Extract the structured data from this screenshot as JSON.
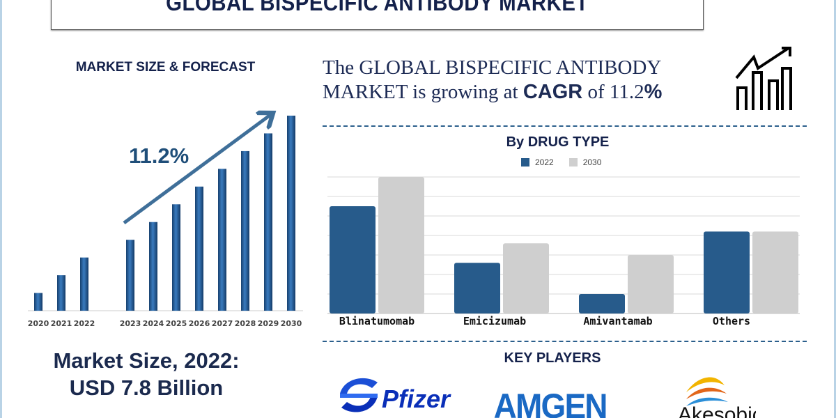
{
  "header": {
    "title": "GLOBAL BISPECIFIC ANTIBODY MARKET"
  },
  "left": {
    "section_title": "MARKET SIZE & FORECAST",
    "market_size_line1": "Market Size, 2022:",
    "market_size_line2": "USD 7.8 Billion"
  },
  "headline": {
    "part1": "The GLOBAL BISPECIFIC ANTIBODY MARKET is growing at ",
    "cagr_word": "CAGR",
    "part2": " of 11.2",
    "percent": "%"
  },
  "icons": {
    "growth": "bar-chart-growth-icon"
  },
  "key_players": {
    "title": "KEY PLAYERS",
    "companies": [
      "Pfizer",
      "AMGEN",
      "Akesobio"
    ]
  },
  "colors": {
    "navy": "#14214b",
    "bar_2022": "#275b8b",
    "bar_2030": "#cfcfcf",
    "forecast_bar": "#2b65a6",
    "arrow": "#3f6f99"
  },
  "chart_data": [
    {
      "type": "bar",
      "title": "",
      "categories": [
        "2020",
        "2021",
        "2022",
        "2023",
        "2024",
        "2025",
        "2026",
        "2027",
        "2028",
        "2029",
        "2030"
      ],
      "values": [
        1,
        2,
        3,
        4,
        5,
        6,
        7,
        8,
        9,
        10,
        11
      ],
      "annotation": "11.2%",
      "grid": false,
      "xlabel": "",
      "ylabel": ""
    },
    {
      "type": "bar",
      "title": "By DRUG TYPE",
      "categories": [
        "Blinatumomab",
        "Emicizumab",
        "Amivantamab",
        "Others"
      ],
      "series": [
        {
          "name": "2022",
          "values": [
            5.5,
            2.6,
            1.0,
            4.2
          ]
        },
        {
          "name": "2030",
          "values": [
            7.0,
            3.6,
            3.0,
            4.2
          ]
        }
      ],
      "ylim": [
        0,
        7
      ],
      "grid": true,
      "legend": "top-center",
      "xlabel": "",
      "ylabel": ""
    }
  ]
}
